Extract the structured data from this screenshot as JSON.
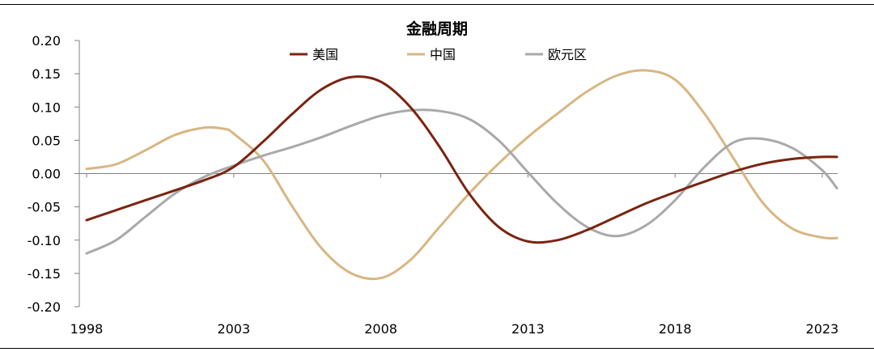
{
  "chart_data": {
    "type": "line",
    "title": "金融周期",
    "xlabel": "",
    "ylabel": "",
    "xlim": [
      1998,
      2023.6
    ],
    "ylim": [
      -0.2,
      0.2
    ],
    "x_ticks": [
      1998,
      2003,
      2008,
      2013,
      2018,
      2023
    ],
    "x_tick_labels": [
      "1998",
      "2003",
      "2008",
      "2013",
      "2018",
      "2023"
    ],
    "y_ticks": [
      0.2,
      0.15,
      0.1,
      0.05,
      0.0,
      -0.05,
      -0.1,
      -0.15,
      -0.2
    ],
    "y_tick_labels": [
      "0.20",
      "0.15",
      "0.10",
      "0.05",
      "0.00",
      "-0.05",
      "-0.10",
      "-0.15",
      "-0.20"
    ],
    "legend_position": "top-center",
    "grid": false,
    "series": [
      {
        "name": "美国",
        "color": "#7a2410",
        "points": [
          [
            1998,
            -0.07
          ],
          [
            2000,
            -0.04
          ],
          [
            2002,
            -0.01
          ],
          [
            2003,
            0.01
          ],
          [
            2004,
            0.048
          ],
          [
            2005,
            0.09
          ],
          [
            2006,
            0.127
          ],
          [
            2007,
            0.145
          ],
          [
            2008,
            0.138
          ],
          [
            2009,
            0.1
          ],
          [
            2010,
            0.04
          ],
          [
            2011,
            -0.03
          ],
          [
            2012,
            -0.08
          ],
          [
            2013,
            -0.102
          ],
          [
            2014,
            -0.1
          ],
          [
            2015,
            -0.085
          ],
          [
            2016,
            -0.065
          ],
          [
            2017,
            -0.045
          ],
          [
            2018,
            -0.028
          ],
          [
            2019,
            -0.012
          ],
          [
            2020,
            0.003
          ],
          [
            2021,
            0.015
          ],
          [
            2022,
            0.022
          ],
          [
            2023,
            0.025
          ],
          [
            2023.5,
            0.025
          ]
        ]
      },
      {
        "name": "中国",
        "color": "#d8b682",
        "points": [
          [
            1998,
            0.007
          ],
          [
            1999,
            0.014
          ],
          [
            2000,
            0.035
          ],
          [
            2001,
            0.058
          ],
          [
            2002,
            0.069
          ],
          [
            2002.7,
            0.067
          ],
          [
            2003,
            0.06
          ],
          [
            2004,
            0.02
          ],
          [
            2005,
            -0.05
          ],
          [
            2006,
            -0.113
          ],
          [
            2007,
            -0.15
          ],
          [
            2008,
            -0.157
          ],
          [
            2009,
            -0.13
          ],
          [
            2010,
            -0.08
          ],
          [
            2011,
            -0.03
          ],
          [
            2012,
            0.015
          ],
          [
            2013,
            0.055
          ],
          [
            2014,
            0.09
          ],
          [
            2015,
            0.123
          ],
          [
            2016,
            0.147
          ],
          [
            2017,
            0.155
          ],
          [
            2018,
            0.141
          ],
          [
            2019,
            0.09
          ],
          [
            2020,
            0.022
          ],
          [
            2021,
            -0.045
          ],
          [
            2022,
            -0.083
          ],
          [
            2023,
            -0.096
          ],
          [
            2023.5,
            -0.097
          ]
        ]
      },
      {
        "name": "欧元区",
        "color": "#a9a9ab",
        "points": [
          [
            1998,
            -0.12
          ],
          [
            1999,
            -0.1
          ],
          [
            2000,
            -0.065
          ],
          [
            2001,
            -0.03
          ],
          [
            2002,
            -0.005
          ],
          [
            2003,
            0.012
          ],
          [
            2004,
            0.027
          ],
          [
            2005,
            0.04
          ],
          [
            2006,
            0.055
          ],
          [
            2007,
            0.072
          ],
          [
            2008,
            0.087
          ],
          [
            2009,
            0.095
          ],
          [
            2010,
            0.094
          ],
          [
            2011,
            0.082
          ],
          [
            2012,
            0.05
          ],
          [
            2013,
            0.002
          ],
          [
            2014,
            -0.045
          ],
          [
            2015,
            -0.08
          ],
          [
            2016,
            -0.094
          ],
          [
            2017,
            -0.078
          ],
          [
            2018,
            -0.04
          ],
          [
            2019,
            0.01
          ],
          [
            2020,
            0.047
          ],
          [
            2021,
            0.052
          ],
          [
            2022,
            0.038
          ],
          [
            2023,
            0.005
          ],
          [
            2023.5,
            -0.022
          ]
        ]
      }
    ]
  }
}
